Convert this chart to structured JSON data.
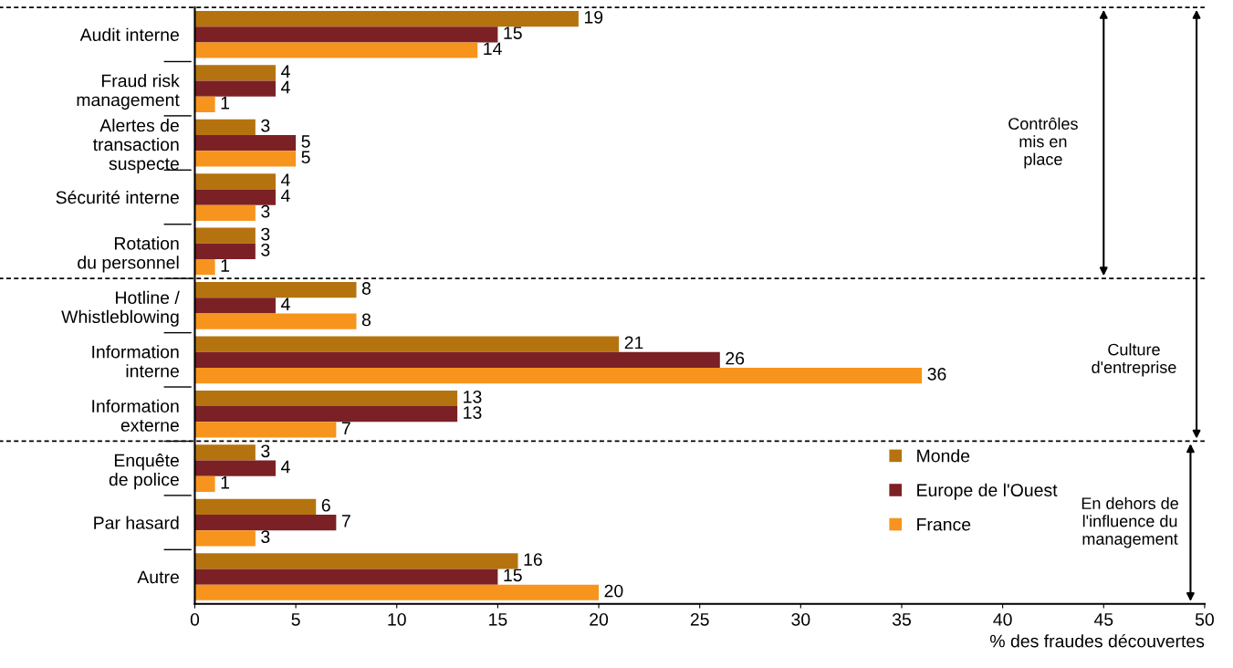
{
  "chart_data": {
    "type": "bar",
    "orientation": "horizontal",
    "categories": [
      "Audit interne",
      "Fraud risk\nmanagement",
      "Alertes de\ntransaction\nsuspecte",
      "Sécurité interne",
      "Rotation\ndu personnel",
      "Hotline /\nWhistleblowing",
      "Information\ninterne",
      "Information\nexterne",
      "Enquête\nde police",
      "Par hasard",
      "Autre"
    ],
    "series": [
      {
        "name": "Monde",
        "color": "#b5730f",
        "values": [
          19,
          4,
          3,
          4,
          3,
          8,
          21,
          13,
          3,
          6,
          16
        ]
      },
      {
        "name": "Europe de l'Ouest",
        "color": "#7b2126",
        "values": [
          15,
          4,
          5,
          4,
          3,
          4,
          26,
          13,
          4,
          7,
          15
        ]
      },
      {
        "name": "France",
        "color": "#f7941d",
        "values": [
          14,
          1,
          5,
          3,
          1,
          8,
          36,
          7,
          1,
          3,
          20
        ]
      }
    ],
    "xlim": [
      0,
      50
    ],
    "xticks": [
      0,
      5,
      10,
      15,
      20,
      25,
      30,
      35,
      40,
      45,
      50
    ],
    "xlabel": "% des fraudes découvertes",
    "annotations": [
      "Contrôles\nmis en\nplace",
      "Culture\nd'entreprise",
      "En dehors de\nl'influence du\nmanagement"
    ],
    "data_labels": true,
    "legend": "bottom right",
    "grid": false
  }
}
